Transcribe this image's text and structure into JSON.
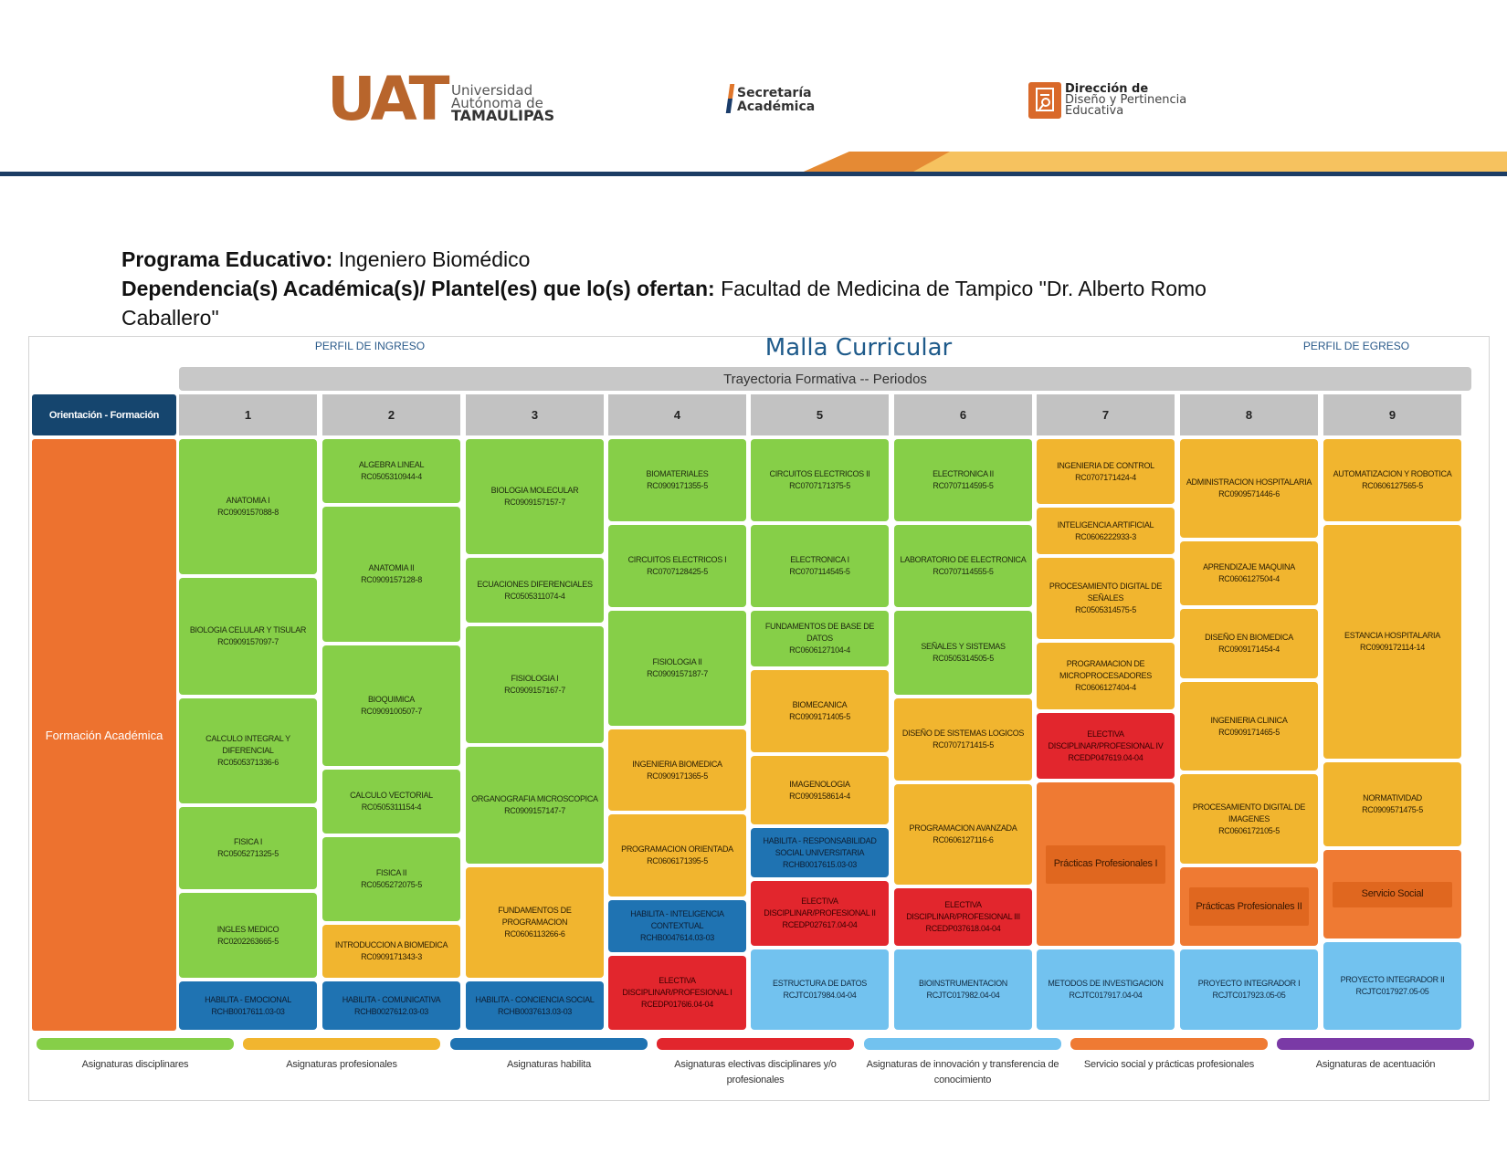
{
  "header": {
    "uat_logo": {
      "mark": "UAT",
      "line1": "Universidad",
      "line2": "Autónoma de",
      "line3": "TAMAULIPAS"
    },
    "secretaria": {
      "line1": "Secretaría",
      "line2": "Académica"
    },
    "ddpe": {
      "line1": "Dirección de",
      "line2": "Diseño y Pertinencia",
      "line3": "Educativa"
    }
  },
  "program": {
    "label1": "Programa Educativo:",
    "value1": "Ingeniero Biomédico",
    "label2": "Dependencia(s) Académica(s)/ Plantel(es) que lo(s) ofertan:",
    "value2a": "Facultad de Medicina de Tampico \"Dr. Alberto Romo",
    "value2b": "Caballero\""
  },
  "malla": {
    "perfil_ingreso": "PERFIL DE INGRESO",
    "title": "Malla Curricular",
    "perfil_egreso": "PERFIL DE EGRESO",
    "trayectoria": "Trayectoria Formativa -- Periodos",
    "orientacion": "Orientación - Formación",
    "formacion": "Formación Académica",
    "periods": [
      "1",
      "2",
      "3",
      "4",
      "5",
      "6",
      "7",
      "8",
      "9"
    ],
    "columns": [
      [
        {
          "name": "ANATOMIA I",
          "code": "RC0909157088-8"
        },
        {
          "name": "BIOLOGIA CELULAR Y TISULAR",
          "code": "RC0909157097-7"
        },
        {
          "name": "CALCULO INTEGRAL Y DIFERENCIAL",
          "code": "RC0505371336-6"
        },
        {
          "name": "FISICA I",
          "code": "RC0505271325-5"
        },
        {
          "name": "INGLES MEDICO",
          "code": "RC0202263665-5"
        },
        {
          "name": "HABILITA - EMOCIONAL",
          "code": "RCHB0017611.03-03"
        }
      ],
      [
        {
          "name": "ALGEBRA LINEAL",
          "code": "RC0505310944-4"
        },
        {
          "name": "ANATOMIA II",
          "code": "RC0909157128-8"
        },
        {
          "name": "BIOQUIMICA",
          "code": "RC0909100507-7"
        },
        {
          "name": "CALCULO VECTORIAL",
          "code": "RC0505311154-4"
        },
        {
          "name": "FISICA II",
          "code": "RC0505272075-5"
        },
        {
          "name": "INTRODUCCION A BIOMEDICA",
          "code": "RC0909171343-3"
        },
        {
          "name": "HABILITA - COMUNICATIVA",
          "code": "RCHB0027612.03-03"
        }
      ],
      [
        {
          "name": "BIOLOGIA MOLECULAR",
          "code": "RC0909157157-7"
        },
        {
          "name": "ECUACIONES DIFERENCIALES",
          "code": "RC0505311074-4"
        },
        {
          "name": "FISIOLOGIA I",
          "code": "RC0909157167-7"
        },
        {
          "name": "ORGANOGRAFIA MICROSCOPICA",
          "code": "RC0909157147-7"
        },
        {
          "name": "FUNDAMENTOS DE PROGRAMACION",
          "code": "RC0606113266-6"
        },
        {
          "name": "HABILITA - CONCIENCIA SOCIAL",
          "code": "RCHB0037613.03-03"
        }
      ],
      [
        {
          "name": "BIOMATERIALES",
          "code": "RC0909171355-5"
        },
        {
          "name": "CIRCUITOS ELECTRICOS I",
          "code": "RC0707128425-5"
        },
        {
          "name": "FISIOLOGIA II",
          "code": "RC0909157187-7"
        },
        {
          "name": "INGENIERIA BIOMEDICA",
          "code": "RC0909171365-5"
        },
        {
          "name": "PROGRAMACION ORIENTADA",
          "code": "RC0606171395-5"
        },
        {
          "name": "HABILITA - INTELIGENCIA CONTEXTUAL",
          "code": "RCHB0047614.03-03"
        },
        {
          "name": "ELECTIVA DISCIPLINAR/PROFESIONAL I",
          "code": "RCEDP0176l6.04-04"
        }
      ],
      [
        {
          "name": "CIRCUITOS ELECTRICOS II",
          "code": "RC0707171375-5"
        },
        {
          "name": "ELECTRONICA I",
          "code": "RC0707114545-5"
        },
        {
          "name": "FUNDAMENTOS DE BASE DE DATOS",
          "code": "RC0606127104-4"
        },
        {
          "name": "BIOMECANICA",
          "code": "RC0909171405-5"
        },
        {
          "name": "IMAGENOLOGIA",
          "code": "RC0909158614-4"
        },
        {
          "name": "HABILITA - RESPONSABILIDAD SOCIAL UNIVERSITARIA",
          "code": "RCHB0017615.03-03"
        },
        {
          "name": "ELECTIVA DISCIPLINAR/PROFESIONAL II",
          "code": "RCEDP027617.04-04"
        },
        {
          "name": "ESTRUCTURA DE DATOS",
          "code": "RCJTC017984.04-04"
        }
      ],
      [
        {
          "name": "ELECTRONICA II",
          "code": "RC0707114595-5"
        },
        {
          "name": "LABORATORIO DE ELECTRONICA",
          "code": "RC0707114555-5"
        },
        {
          "name": "SEÑALES Y SISTEMAS",
          "code": "RC0505314505-5"
        },
        {
          "name": "DISEÑO DE SISTEMAS LOGICOS",
          "code": "RC0707171415-5"
        },
        {
          "name": "PROGRAMACION AVANZADA",
          "code": "RC0606127116-6"
        },
        {
          "name": "ELECTIVA DISCIPLINAR/PROFESIONAL III",
          "code": "RCEDP037618.04-04"
        },
        {
          "name": "BIOINSTRUMENTACION",
          "code": "RCJTC017982.04-04"
        }
      ],
      [
        {
          "name": "INGENIERIA DE CONTROL",
          "code": "RC0707171424-4"
        },
        {
          "name": "INTELIGENCIA ARTIFICIAL",
          "code": "RC0606222933-3"
        },
        {
          "name": "PROCESAMIENTO DIGITAL DE SEÑALES",
          "code": "RC0505314575-5"
        },
        {
          "name": "PROGRAMACION DE MICROPROCESADORES",
          "code": "RC0606127404-4"
        },
        {
          "name": "ELECTIVA DISCIPLINAR/PROFESIONAL IV",
          "code": "RCEDP047619.04-04"
        },
        {
          "name": "Prácticas Profesionales I",
          "code": ""
        },
        {
          "name": "METODOS DE INVESTIGACION",
          "code": "RCJTC017917.04-04"
        }
      ],
      [
        {
          "name": "ADMINISTRACION HOSPITALARIA",
          "code": "RC0909571446-6"
        },
        {
          "name": "APRENDIZAJE MAQUINA",
          "code": "RC0606127504-4"
        },
        {
          "name": "DISEÑO EN BIOMEDICA",
          "code": "RC0909171454-4"
        },
        {
          "name": "INGENIERIA CLINICA",
          "code": "RC0909171465-5"
        },
        {
          "name": "PROCESAMIENTO DIGITAL DE IMAGENES",
          "code": "RC0606172105-5"
        },
        {
          "name": "Prácticas Profesionales II",
          "code": ""
        },
        {
          "name": "PROYECTO INTEGRADOR I",
          "code": "RCJTC017923.05-05"
        }
      ],
      [
        {
          "name": "AUTOMATIZACION Y ROBOTICA",
          "code": "RC0606127565-5"
        },
        {
          "name": "ESTANCIA HOSPITALARIA",
          "code": "RC0909172114-14"
        },
        {
          "name": "NORMATIVIDAD",
          "code": "RC0909571475-5"
        },
        {
          "name": "Servicio Social",
          "code": ""
        },
        {
          "name": "PROYECTO INTEGRADOR II",
          "code": "RCJTC017927.05-05"
        }
      ]
    ],
    "legend": [
      {
        "label": "Asignaturas disciplinares",
        "color": "#86cf48"
      },
      {
        "label": "Asignaturas profesionales",
        "color": "#f1b52f"
      },
      {
        "label": "Asignaturas habilita",
        "color": "#1f73b2"
      },
      {
        "label": "Asignaturas electivas disciplinares y/o profesionales",
        "color": "#e2262d"
      },
      {
        "label": "Asignaturas de innovación y transferencia de conocimiento",
        "color": "#72c2ef"
      },
      {
        "label": "Servicio social y prácticas profesionales",
        "color": "#ef7a33"
      },
      {
        "label": "Asignaturas de acentuación",
        "color": "#7a3aa6"
      }
    ]
  }
}
